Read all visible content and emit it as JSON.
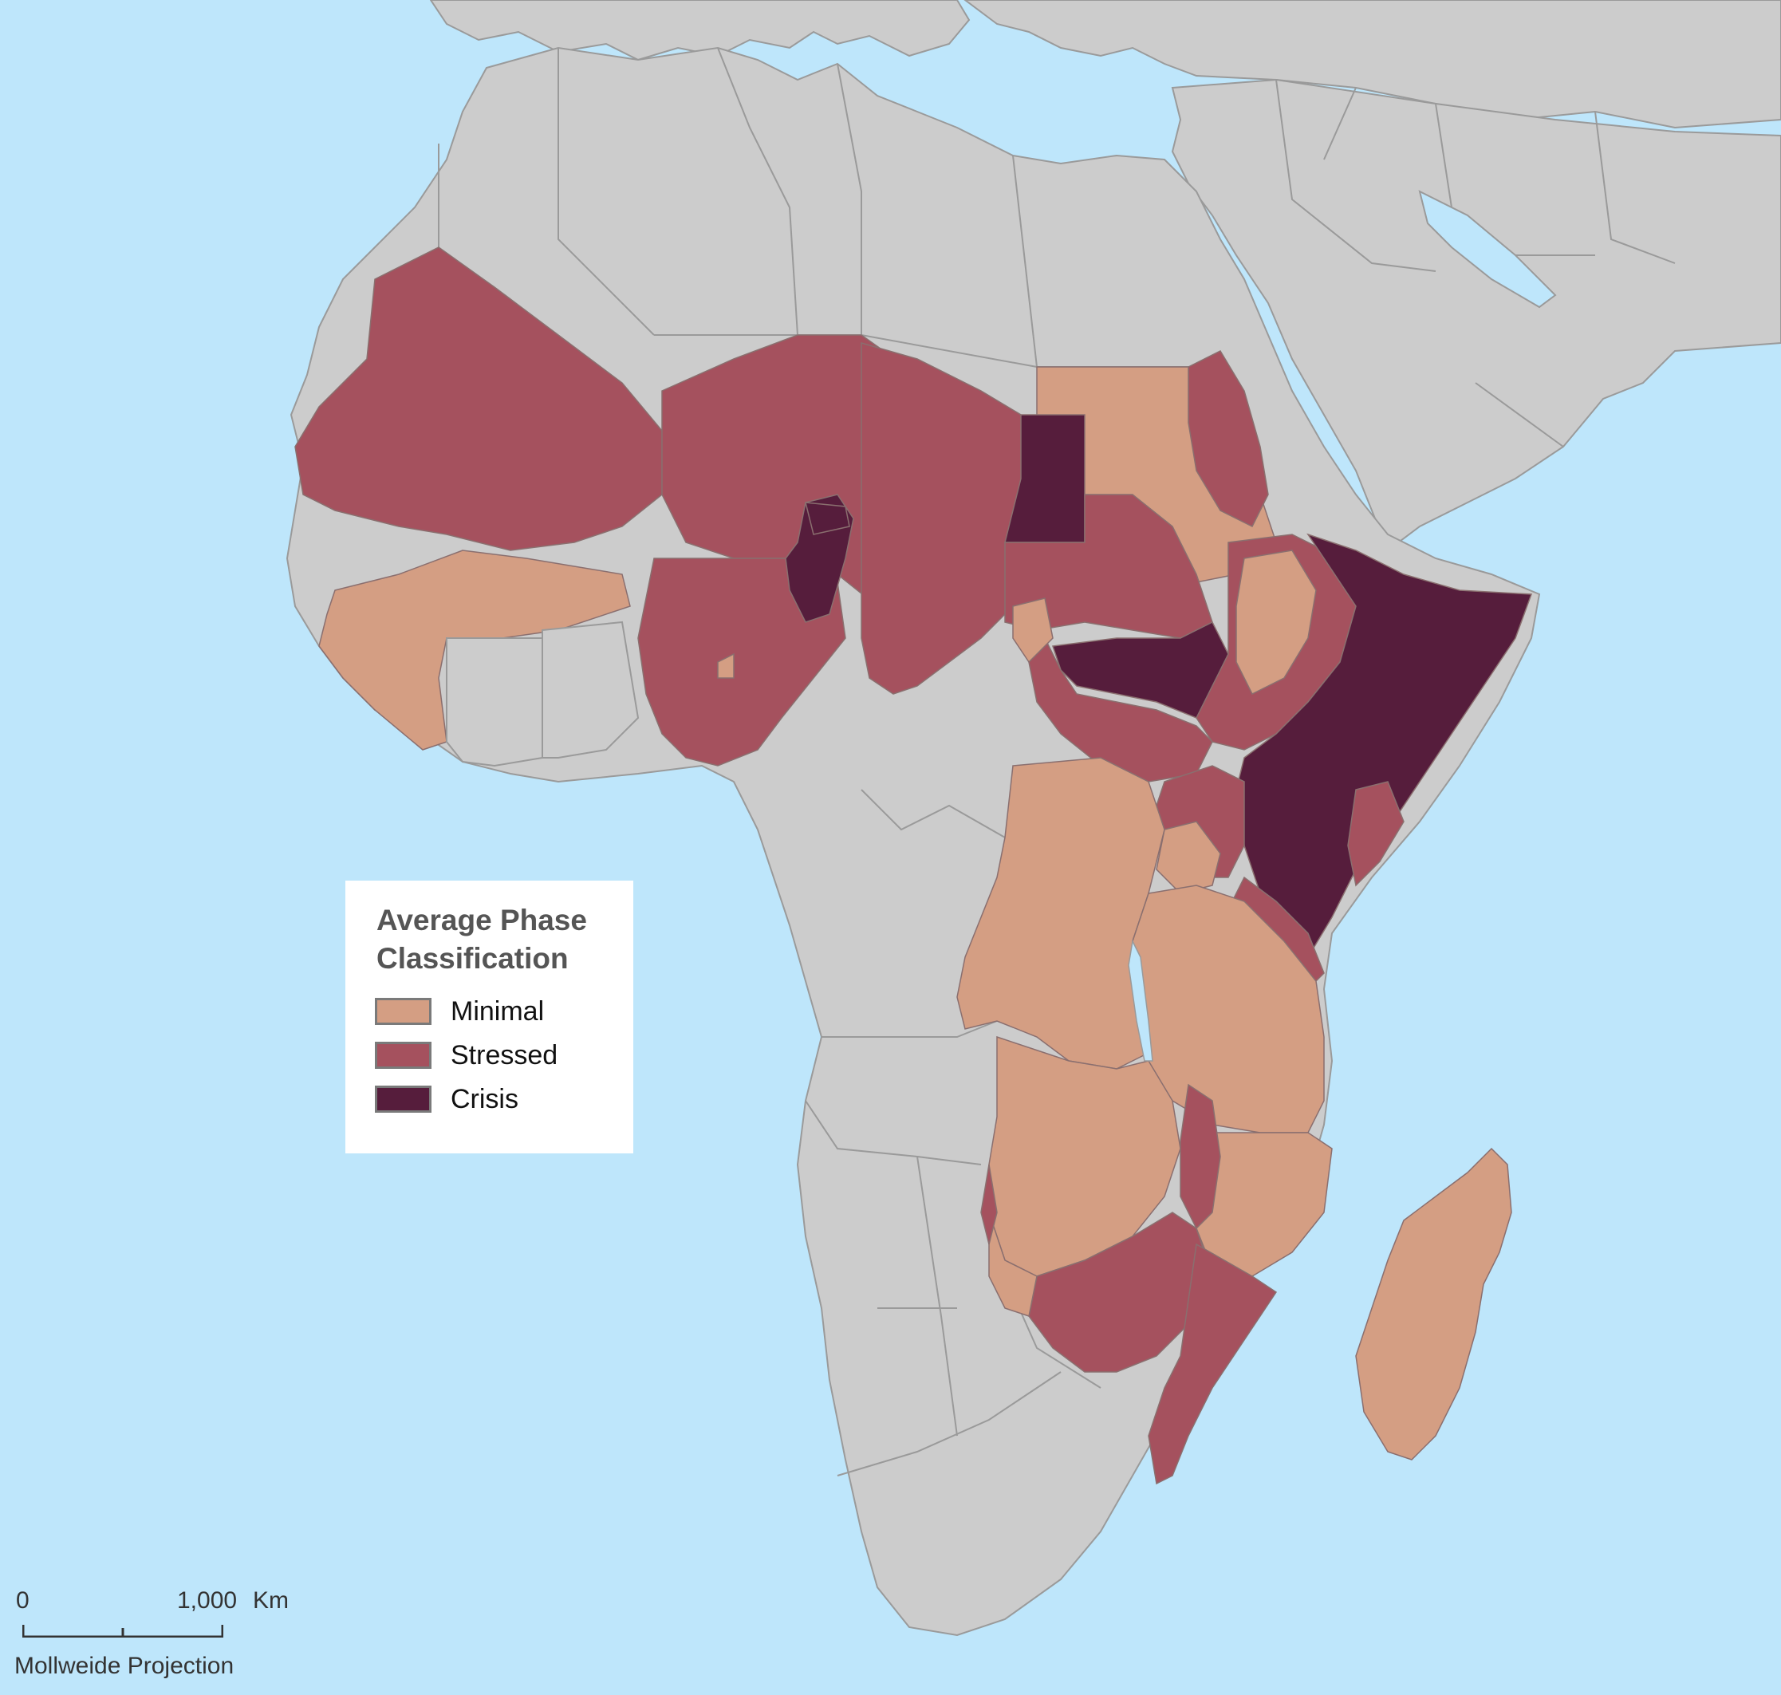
{
  "legend": {
    "title_line1": "Average Phase",
    "title_line2": "Classification",
    "items": [
      {
        "label": "Minimal",
        "color": "#d49e83"
      },
      {
        "label": "Stressed",
        "color": "#a5515e"
      },
      {
        "label": "Crisis",
        "color": "#561d3c"
      }
    ]
  },
  "scale": {
    "start_label": "0",
    "end_label": "1,000",
    "unit_label": "Km",
    "projection_label": "Mollweide Projection"
  },
  "colors": {
    "ocean": "#bee6fb",
    "land": "#cccccc",
    "border": "#9a9a9a"
  }
}
